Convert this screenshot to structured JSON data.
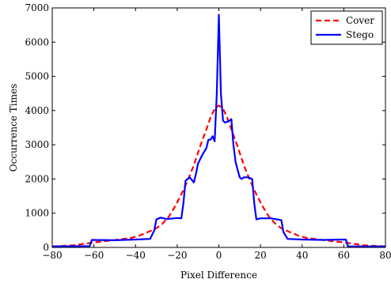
{
  "chart_data": {
    "type": "line",
    "xlabel": "Pixel Difference",
    "ylabel": "Occurrence Times",
    "xlim": [
      -80,
      80
    ],
    "ylim": [
      0,
      7000
    ],
    "x_ticks": [
      -80,
      -60,
      -40,
      -20,
      0,
      20,
      40,
      60,
      80
    ],
    "x_tick_labels": [
      "−80",
      "−60",
      "−40",
      "−20",
      "0",
      "20",
      "40",
      "60",
      "80"
    ],
    "y_ticks": [
      0,
      1000,
      2000,
      3000,
      4000,
      5000,
      6000,
      7000
    ],
    "y_tick_labels": [
      "0",
      "1000",
      "2000",
      "3000",
      "4000",
      "5000",
      "6000",
      "7000"
    ],
    "grid": false,
    "legend": {
      "placement": "top-right",
      "entries": [
        "Cover",
        "Stego"
      ]
    },
    "series": [
      {
        "name": "Cover",
        "color": "#ff0000",
        "style": "dashed",
        "x": [
          -80,
          -70,
          -62,
          -55,
          -48,
          -42,
          -38,
          -34,
          -30,
          -27,
          -24,
          -21,
          -18,
          -15,
          -12,
          -9,
          -6,
          -4,
          -2,
          0,
          2,
          4,
          6,
          9,
          12,
          15,
          18,
          21,
          24,
          27,
          30,
          34,
          38,
          42,
          48,
          55,
          62,
          70,
          80
        ],
        "y": [
          30,
          60,
          130,
          180,
          230,
          280,
          350,
          450,
          560,
          700,
          900,
          1200,
          1550,
          1950,
          2400,
          2950,
          3450,
          3800,
          4050,
          4150,
          4050,
          3800,
          3450,
          2950,
          2400,
          1950,
          1550,
          1200,
          900,
          700,
          560,
          450,
          350,
          280,
          230,
          180,
          130,
          60,
          30
        ]
      },
      {
        "name": "Stego",
        "color": "#0000ff",
        "style": "solid",
        "x": [
          -80,
          -62,
          -61,
          -50,
          -40,
          -33,
          -31,
          -30,
          -28,
          -25,
          -20,
          -18,
          -17,
          -16,
          -14,
          -12,
          -11,
          -10,
          -8,
          -6,
          -5,
          -4,
          -3,
          -2,
          -1,
          0,
          1,
          2,
          3,
          5,
          6,
          7,
          8,
          10,
          11,
          12,
          14,
          16,
          17,
          18,
          20,
          25,
          30,
          31,
          33,
          40,
          50,
          61,
          62,
          80
        ],
        "y": [
          30,
          40,
          220,
          210,
          230,
          250,
          500,
          820,
          870,
          830,
          860,
          850,
          1300,
          1950,
          2050,
          1900,
          2150,
          2450,
          2700,
          2900,
          3150,
          3150,
          3250,
          3100,
          4500,
          6800,
          4500,
          3700,
          3650,
          3700,
          3750,
          3000,
          2500,
          2050,
          2000,
          2050,
          2050,
          2000,
          1300,
          820,
          850,
          850,
          800,
          450,
          250,
          230,
          220,
          230,
          30,
          30
        ]
      }
    ]
  }
}
